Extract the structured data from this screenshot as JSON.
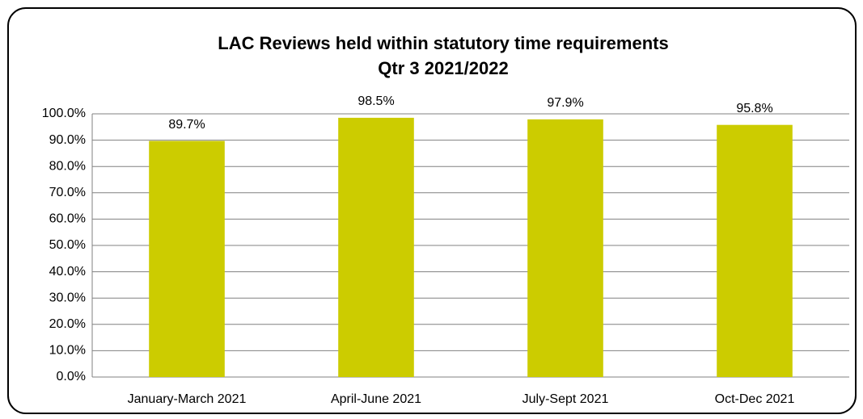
{
  "chart_data": {
    "type": "bar",
    "title": "LAC Reviews held within statutory time requirements",
    "subtitle": "Qtr 3 2021/2022",
    "categories": [
      "January-March 2021",
      "April-June 2021",
      "July-Sept 2021",
      "Oct-Dec 2021"
    ],
    "values": [
      89.7,
      98.5,
      97.9,
      95.8
    ],
    "value_labels": [
      "89.7%",
      "98.5%",
      "97.9%",
      "95.8%"
    ],
    "color": "#cccc00",
    "ylim": [
      0,
      100
    ],
    "yticks": [
      {
        "value": 0,
        "label": "0.0%"
      },
      {
        "value": 10,
        "label": "10.0%"
      },
      {
        "value": 20,
        "label": "20.0%"
      },
      {
        "value": 30,
        "label": "30.0%"
      },
      {
        "value": 40,
        "label": "40.0%"
      },
      {
        "value": 50,
        "label": "50.0%"
      },
      {
        "value": 60,
        "label": "60.0%"
      },
      {
        "value": 70,
        "label": "70.0%"
      },
      {
        "value": 80,
        "label": "80.0%"
      },
      {
        "value": 90,
        "label": "90.0%"
      },
      {
        "value": 100,
        "label": "100.0%"
      }
    ],
    "grid": true
  }
}
